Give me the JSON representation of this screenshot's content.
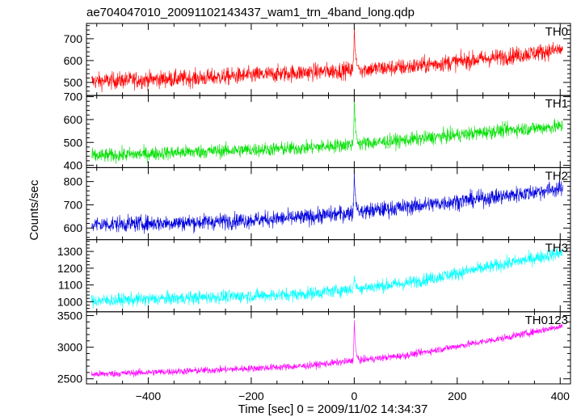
{
  "title": "ae704047010_20091102143437_wam1_trn_4band_long.qdp",
  "xlabel": "Time [sec] 0 = 2009/11/02 14:34:37",
  "ylabel": "Counts/sec",
  "chart_data": [
    {
      "type": "line",
      "name": "TH0",
      "color": "#ff0000",
      "xlim": [
        -520,
        420
      ],
      "ylim": [
        440,
        770
      ],
      "yticks": [
        500,
        600,
        700
      ],
      "ytick_labels": [
        "500",
        "600",
        "700"
      ],
      "baseline": [
        [
          -510,
          505
        ],
        [
          -300,
          520
        ],
        [
          -100,
          545
        ],
        [
          100,
          570
        ],
        [
          300,
          620
        ],
        [
          400,
          650
        ]
      ],
      "noise": 28,
      "spike": {
        "x": 0,
        "peak": 760
      },
      "x_range": [
        -510,
        405
      ]
    },
    {
      "type": "line",
      "name": "TH1",
      "color": "#00e000",
      "xlim": [
        -520,
        420
      ],
      "ylim": [
        390,
        705
      ],
      "yticks": [
        400,
        500,
        600,
        700
      ],
      "ytick_labels": [
        "400",
        "500",
        "600",
        "700"
      ],
      "baseline": [
        [
          -510,
          440
        ],
        [
          -300,
          460
        ],
        [
          -100,
          475
        ],
        [
          100,
          510
        ],
        [
          300,
          555
        ],
        [
          400,
          570
        ]
      ],
      "noise": 22,
      "spike": {
        "x": 0,
        "peak": 700
      },
      "x_range": [
        -510,
        405
      ]
    },
    {
      "type": "line",
      "name": "TH2",
      "color": "#0000dd",
      "xlim": [
        -520,
        420
      ],
      "ylim": [
        550,
        860
      ],
      "yticks": [
        600,
        700,
        800
      ],
      "ytick_labels": [
        "600",
        "700",
        "800"
      ],
      "baseline": [
        [
          -510,
          615
        ],
        [
          -300,
          625
        ],
        [
          -100,
          645
        ],
        [
          100,
          690
        ],
        [
          300,
          740
        ],
        [
          400,
          770
        ]
      ],
      "noise": 25,
      "spike": {
        "x": 0,
        "peak": 850
      },
      "x_range": [
        -510,
        405
      ]
    },
    {
      "type": "line",
      "name": "TH3",
      "color": "#00ffff",
      "xlim": [
        -520,
        420
      ],
      "ylim": [
        940,
        1370
      ],
      "yticks": [
        1000,
        1100,
        1200,
        1300
      ],
      "ytick_labels": [
        "1000",
        "1100",
        "1200",
        "1300"
      ],
      "baseline": [
        [
          -510,
          1005
        ],
        [
          -300,
          1025
        ],
        [
          -100,
          1045
        ],
        [
          100,
          1110
        ],
        [
          300,
          1230
        ],
        [
          400,
          1290
        ]
      ],
      "noise": 28,
      "spike": {
        "x": 0,
        "peak": 1155
      },
      "x_range": [
        -510,
        405
      ]
    },
    {
      "type": "line",
      "name": "TH0123",
      "color": "#ff00ff",
      "xlim": [
        -520,
        420
      ],
      "ylim": [
        2420,
        3560
      ],
      "yticks": [
        2500,
        3000,
        3500
      ],
      "ytick_labels": [
        "2500",
        "3000",
        "3500"
      ],
      "baseline": [
        [
          -510,
          2570
        ],
        [
          -300,
          2630
        ],
        [
          -100,
          2700
        ],
        [
          100,
          2870
        ],
        [
          300,
          3160
        ],
        [
          400,
          3330
        ]
      ],
      "noise": 40,
      "spike": {
        "x": 0,
        "peak": 3430
      },
      "x_range": [
        -510,
        405
      ]
    }
  ],
  "xaxis": {
    "ticks": [
      -400,
      -200,
      0,
      200,
      400
    ],
    "tick_labels": [
      "−400",
      "−200",
      "0",
      "200",
      "400"
    ],
    "minor_step": 50
  }
}
